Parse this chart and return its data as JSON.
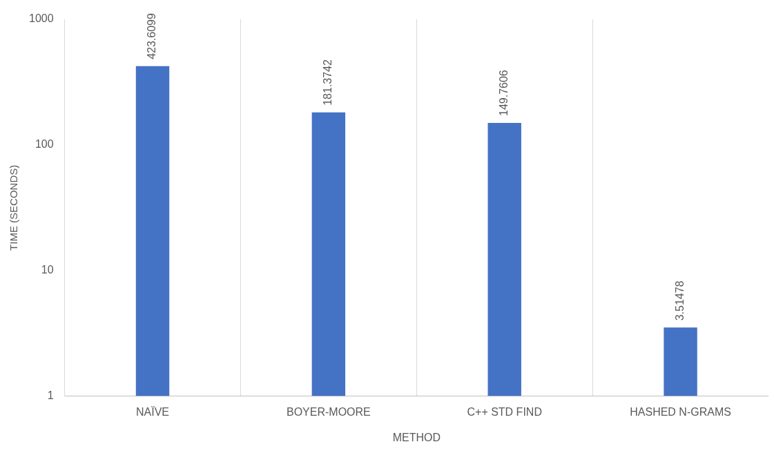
{
  "chart_data": {
    "type": "bar",
    "xlabel": "METHOD",
    "ylabel": "TIME (SECONDS)",
    "categories": [
      "NAÏVE",
      "BOYER-MOORE",
      "C++ STD FIND",
      "HASHED N-GRAMS"
    ],
    "values": [
      423.6099,
      181.3742,
      149.7606,
      3.51478
    ],
    "color": "#4472c4",
    "log": "y",
    "ylim": [
      1,
      1000
    ],
    "yticks": [
      1,
      10,
      100,
      1000
    ],
    "grid": "x",
    "data_labels": true,
    "legend": false
  }
}
